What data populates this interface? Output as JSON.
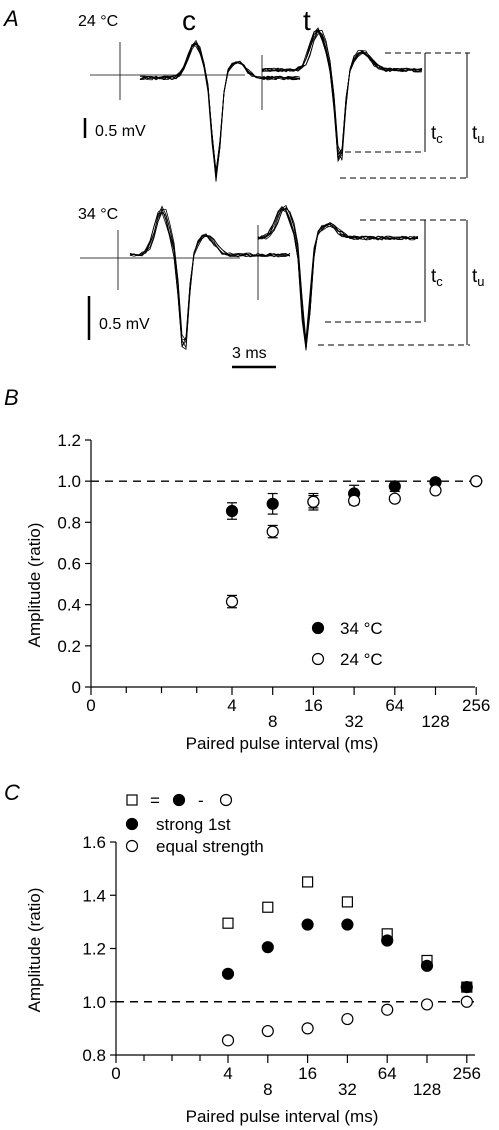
{
  "panelA": {
    "panel_label": "A",
    "temp_top": "24 °C",
    "temp_bottom": "34 °C",
    "label_c": "c",
    "label_t": "t",
    "scale_voltage_top": "0.5 mV",
    "scale_voltage_bottom": "0.5 mV",
    "scale_time": "3 ms",
    "tc_main": "t",
    "tc_sub": "c",
    "tu_main": "t",
    "tu_sub": "u"
  },
  "chart_data": [
    {
      "panel_label": "B",
      "type": "scatter",
      "xlabel": "Paired pulse interval (ms)",
      "ylabel": "Amplitude (ratio)",
      "x_tick_labels": [
        "0",
        "4",
        "8",
        "16",
        "32",
        "64",
        "128",
        "256"
      ],
      "x_scale": "log2",
      "yticks": [
        "0",
        "0.2",
        "0.4",
        "0.6",
        "0.8",
        "1.0",
        "1.2"
      ],
      "ylim": [
        0,
        1.2
      ],
      "reference_line": 1.0,
      "legend_placement": "bottom-right",
      "series": [
        {
          "name": "34 °C",
          "marker": "filled-circle",
          "x": [
            4,
            8,
            16,
            32,
            64,
            128,
            256
          ],
          "y": [
            0.855,
            0.89,
            0.9,
            0.94,
            0.975,
            0.995,
            1.0
          ],
          "err": [
            0.04,
            0.05,
            0.04,
            0.04,
            0.025,
            0.015,
            0.0
          ]
        },
        {
          "name": "24 °C",
          "marker": "open-circle",
          "x": [
            4,
            8,
            16,
            32,
            64,
            128,
            256
          ],
          "y": [
            0.415,
            0.755,
            0.9,
            0.905,
            0.915,
            0.955,
            1.0
          ],
          "err": [
            0.03,
            0.03,
            0.03,
            0.02,
            0.015,
            0.015,
            0.0
          ]
        }
      ]
    },
    {
      "panel_label": "C",
      "type": "scatter",
      "xlabel": "Paired pulse interval (ms)",
      "ylabel": "Amplitude (ratio)",
      "x_tick_labels": [
        "0",
        "4",
        "8",
        "16",
        "32",
        "64",
        "128",
        "256"
      ],
      "x_scale": "log2",
      "yticks": [
        "0.8",
        "1.0",
        "1.2",
        "1.4",
        "1.6"
      ],
      "ylim": [
        0.8,
        1.6
      ],
      "reference_line": 1.0,
      "legend_placement": "top-left",
      "legend_diff_eq": "=",
      "legend_diff_minus": "-",
      "series": [
        {
          "name": "",
          "marker": "open-square",
          "x": [
            4,
            8,
            16,
            32,
            64,
            128,
            256
          ],
          "y": [
            1.295,
            1.355,
            1.45,
            1.375,
            1.255,
            1.155,
            1.055
          ]
        },
        {
          "name": "strong 1st",
          "marker": "filled-circle",
          "x": [
            4,
            8,
            16,
            32,
            64,
            128,
            256
          ],
          "y": [
            1.105,
            1.205,
            1.29,
            1.29,
            1.23,
            1.135,
            1.055
          ]
        },
        {
          "name": "equal strength",
          "marker": "open-circle",
          "x": [
            4,
            8,
            16,
            32,
            64,
            128,
            256
          ],
          "y": [
            0.855,
            0.89,
            0.9,
            0.935,
            0.97,
            0.99,
            1.0
          ]
        }
      ]
    }
  ]
}
